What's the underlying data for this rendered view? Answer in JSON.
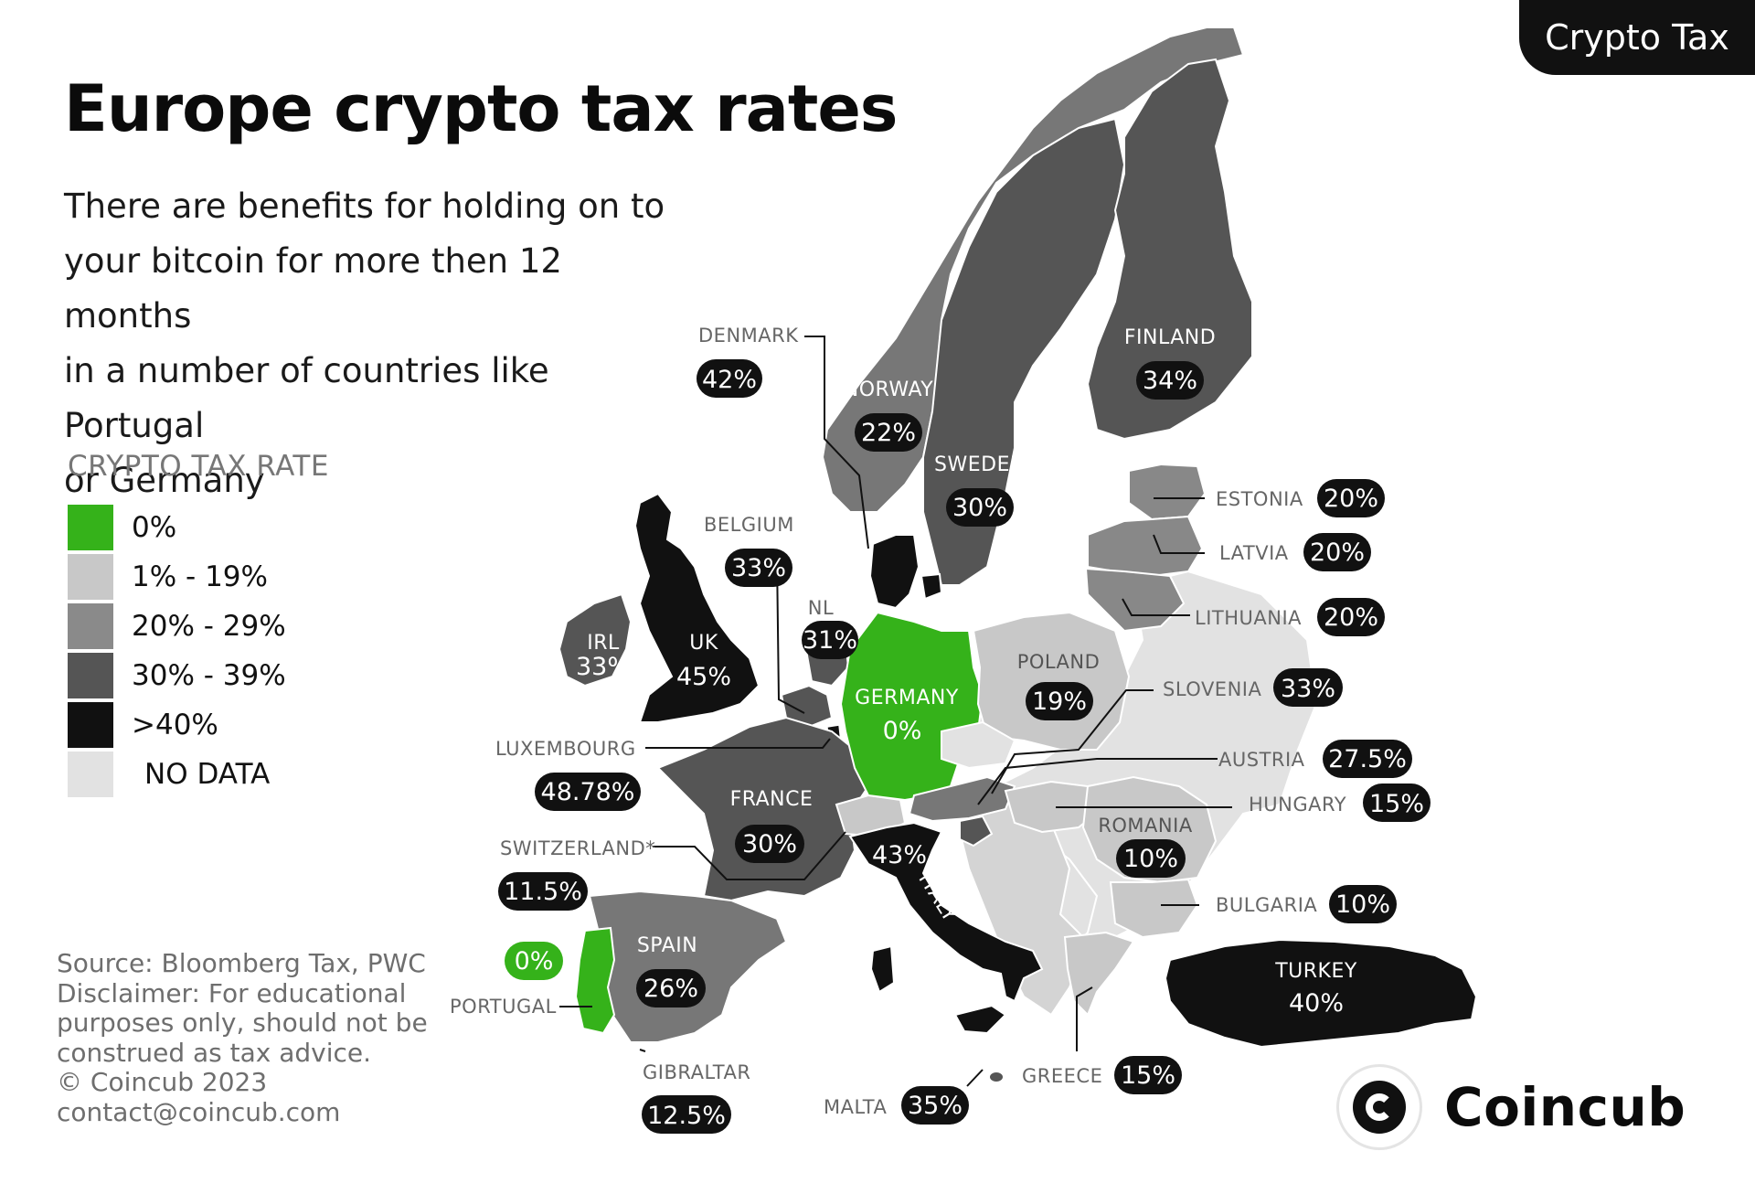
{
  "tag": "Crypto Tax",
  "title": "Europe crypto tax rates",
  "subtitle_lines": [
    "There are benefits for holding on to",
    "your bitcoin for more then 12 months",
    "in a number of countries like Portugal",
    "or Germany"
  ],
  "legend": {
    "title": "CRYPTO TAX RATE",
    "items": [
      {
        "label": "0%",
        "color": "#35b21a"
      },
      {
        "label": "1% - 19%",
        "color": "#c8c8c8"
      },
      {
        "label": "20% - 29%",
        "color": "#8a8a8a"
      },
      {
        "label": "30% - 39%",
        "color": "#555555"
      },
      {
        "label": ">40%",
        "color": "#111111"
      },
      {
        "label": "NO DATA",
        "color": "#e2e2e2"
      }
    ]
  },
  "source_lines": [
    "Source: Bloomberg Tax, PWC",
    "Disclaimer: For educational",
    "purposes only, should not be",
    "construed as tax advice.",
    "© Coincub 2023",
    "contact@coincub.com"
  ],
  "countries": {
    "denmark": {
      "name": "DENMARK",
      "rate": "42%"
    },
    "norway": {
      "name": "NORWAY",
      "rate": "22%"
    },
    "sweden": {
      "name": "SWEDEN",
      "rate": "30%"
    },
    "finland": {
      "name": "FINLAND",
      "rate": "34%"
    },
    "estonia": {
      "name": "ESTONIA",
      "rate": "20%"
    },
    "latvia": {
      "name": "LATVIA",
      "rate": "20%"
    },
    "lithuania": {
      "name": "LITHUANIA",
      "rate": "20%"
    },
    "belgium": {
      "name": "BELGIUM",
      "rate": "33%"
    },
    "nl": {
      "name": "NL",
      "rate": "31%"
    },
    "irl": {
      "name": "IRL",
      "rate": "33%"
    },
    "uk": {
      "name": "UK",
      "rate": "45%"
    },
    "germany": {
      "name": "GERMANY",
      "rate": "0%"
    },
    "poland": {
      "name": "POLAND",
      "rate": "19%"
    },
    "slovenia": {
      "name": "SLOVENIA",
      "rate": "33%"
    },
    "austria": {
      "name": "AUSTRIA",
      "rate": "27.5%"
    },
    "hungary": {
      "name": "HUNGARY",
      "rate": "15%"
    },
    "luxembourg": {
      "name": "LUXEMBOURG",
      "rate": "48.78%"
    },
    "france": {
      "name": "FRANCE",
      "rate": "30%"
    },
    "romania": {
      "name": "ROMANIA",
      "rate": "10%"
    },
    "switzerland": {
      "name": "SWITZERLAND*",
      "rate": "11.5%"
    },
    "italy": {
      "name": "ITALY",
      "rate": "43%"
    },
    "bulgaria": {
      "name": "BULGARIA",
      "rate": "10%"
    },
    "spain": {
      "name": "SPAIN",
      "rate": "26%"
    },
    "portugal": {
      "name": "PORTUGAL",
      "rate": "0%"
    },
    "turkey": {
      "name": "TURKEY",
      "rate": "40%"
    },
    "gibraltar": {
      "name": "GIBRALTAR",
      "rate": "12.5%"
    },
    "malta": {
      "name": "MALTA",
      "rate": "35%"
    },
    "greece": {
      "name": "GREECE",
      "rate": "15%"
    }
  },
  "brand": {
    "name": "Coincub"
  }
}
